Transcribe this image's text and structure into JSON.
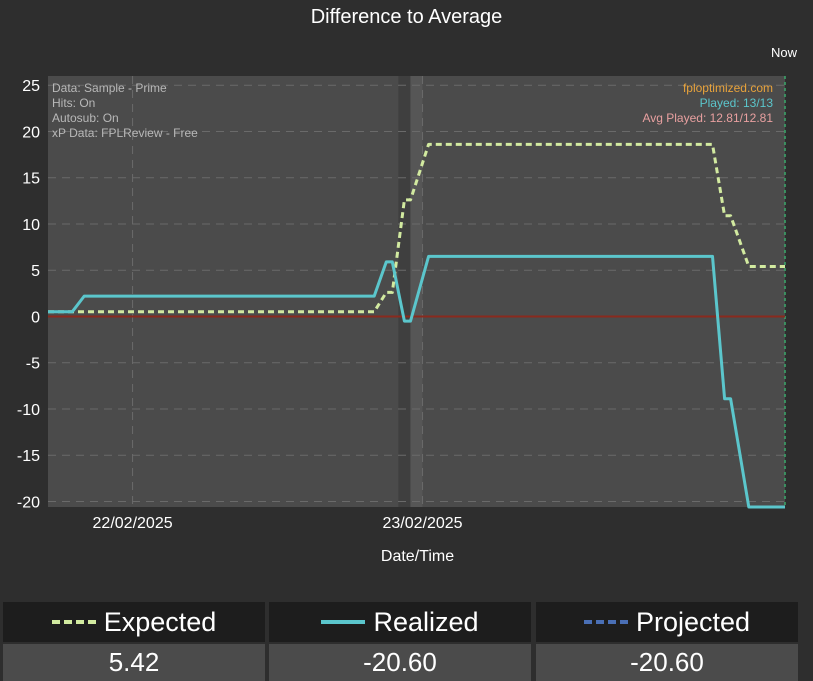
{
  "chart_data": {
    "type": "line",
    "title": "Difference to Average",
    "xlabel": "Date/Time",
    "ylabel": "",
    "ylim": [
      -20.6,
      26
    ],
    "yticks": [
      25,
      20,
      15,
      10,
      5,
      0,
      -5,
      -10,
      -15,
      -20
    ],
    "xlim": [
      "2025-02-21T17:00",
      "2025-02-24T06:00"
    ],
    "xticks": [
      {
        "label": "22/02/2025",
        "t": "2025-02-22T00:00"
      },
      {
        "label": "23/02/2025",
        "t": "2025-02-23T00:00"
      }
    ],
    "now_label": "Now",
    "now_time": "2025-02-24T06:00",
    "shaded_periods": [
      {
        "start": "2025-02-22T22:00",
        "end": "2025-02-22T23:00",
        "tone": "dark"
      },
      {
        "start": "2025-02-22T23:00",
        "end": "2025-02-23T00:00",
        "tone": "light"
      }
    ],
    "info_left": [
      "Data: Sample - Prime",
      "Hits: On",
      "Autosub: On",
      "xP Data: FPLReview - Free"
    ],
    "info_right": [
      {
        "text": "fploptimized.com",
        "color": "#e8a33c"
      },
      {
        "text": "Played: 13/13",
        "color": "#5bc6cc"
      },
      {
        "text": "Avg Played: 12.81/12.81",
        "color": "#e8a0a0"
      }
    ],
    "series": [
      {
        "name": "Expected",
        "color": "#d2eaa0",
        "dash": true,
        "points": [
          [
            "2025-02-21T17:00",
            0.5
          ],
          [
            "2025-02-21T19:00",
            0.5
          ],
          [
            "2025-02-21T20:00",
            0.5
          ],
          [
            "2025-02-22T20:00",
            0.5
          ],
          [
            "2025-02-22T21:00",
            2.6
          ],
          [
            "2025-02-22T21:30",
            2.6
          ],
          [
            "2025-02-22T22:30",
            12.6
          ],
          [
            "2025-02-22T23:00",
            12.6
          ],
          [
            "2025-02-23T00:30",
            18.6
          ],
          [
            "2025-02-24T00:00",
            18.6
          ],
          [
            "2025-02-24T01:00",
            10.9
          ],
          [
            "2025-02-24T01:30",
            10.9
          ],
          [
            "2025-02-24T03:00",
            5.4
          ],
          [
            "2025-02-24T06:00",
            5.4
          ]
        ]
      },
      {
        "name": "Realized",
        "color": "#5bc6cc",
        "dash": false,
        "points": [
          [
            "2025-02-21T17:00",
            0.5
          ],
          [
            "2025-02-21T19:00",
            0.5
          ],
          [
            "2025-02-21T20:00",
            2.2
          ],
          [
            "2025-02-22T20:00",
            2.2
          ],
          [
            "2025-02-22T21:00",
            5.9
          ],
          [
            "2025-02-22T21:30",
            5.9
          ],
          [
            "2025-02-22T22:30",
            -0.5
          ],
          [
            "2025-02-22T23:00",
            -0.5
          ],
          [
            "2025-02-23T00:30",
            6.5
          ],
          [
            "2025-02-24T00:00",
            6.5
          ],
          [
            "2025-02-24T01:00",
            -8.9
          ],
          [
            "2025-02-24T01:30",
            -8.9
          ],
          [
            "2025-02-24T03:00",
            -20.6
          ],
          [
            "2025-02-24T06:00",
            -20.6
          ]
        ]
      }
    ],
    "average_line": {
      "value": 0,
      "color": "#8a2a1e"
    }
  },
  "legend": [
    {
      "label": "Expected",
      "value": "5.42",
      "color": "#d2eaa0",
      "style": "dashed"
    },
    {
      "label": "Realized",
      "value": "-20.60",
      "color": "#5bc6cc",
      "style": "solid"
    },
    {
      "label": "Projected",
      "value": "-20.60",
      "color": "#4a6fb5",
      "style": "dashed"
    }
  ]
}
